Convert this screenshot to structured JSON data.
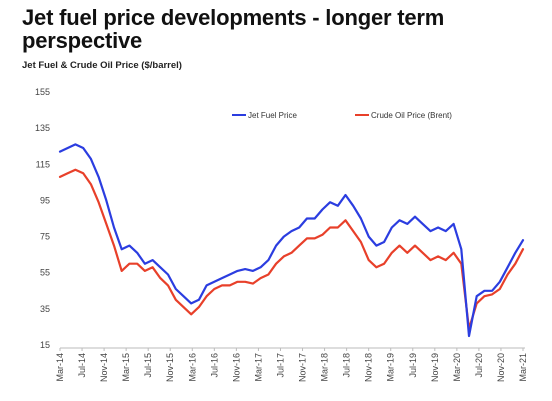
{
  "header": {
    "title": "Jet fuel price developments - longer term perspective",
    "subtitle": "Jet Fuel & Crude Oil Price ($/barrel)"
  },
  "chart_data": {
    "type": "line",
    "title": "Jet Fuel & Crude Oil Price ($/barrel)",
    "xlabel": "",
    "ylabel": "",
    "ylim": [
      15,
      155
    ],
    "yticks": [
      15,
      35,
      55,
      75,
      95,
      115,
      135,
      155
    ],
    "xtick_labels": [
      "Mar-14",
      "Jul-14",
      "Nov-14",
      "Mar-15",
      "Jul-15",
      "Nov-15",
      "Mar-16",
      "Jul-16",
      "Nov-16",
      "Mar-17",
      "Jul-17",
      "Nov-17",
      "Mar-18",
      "Jul-18",
      "Nov-18",
      "Mar-19",
      "Jul-19",
      "Nov-19",
      "Mar-20",
      "Jul-20",
      "Nov-20",
      "Mar-21"
    ],
    "legend_position": "top",
    "grid": false,
    "series": [
      {
        "name": "Jet Fuel Price",
        "color": "#2b3de0",
        "values": [
          122,
          124,
          126,
          124,
          118,
          108,
          95,
          80,
          68,
          70,
          66,
          60,
          62,
          58,
          54,
          46,
          42,
          38,
          40,
          48,
          50,
          52,
          54,
          56,
          57,
          56,
          58,
          62,
          70,
          75,
          78,
          80,
          85,
          85,
          90,
          94,
          92,
          98,
          92,
          85,
          75,
          70,
          72,
          80,
          84,
          82,
          86,
          82,
          78,
          80,
          78,
          82,
          68,
          20,
          42,
          45,
          45,
          50,
          58,
          66,
          73
        ]
      },
      {
        "name": "Crude Oil Price (Brent)",
        "color": "#e8402a",
        "values": [
          108,
          110,
          112,
          110,
          104,
          94,
          82,
          70,
          56,
          60,
          60,
          56,
          58,
          52,
          48,
          40,
          36,
          32,
          36,
          42,
          46,
          48,
          48,
          50,
          50,
          49,
          52,
          54,
          60,
          64,
          66,
          70,
          74,
          74,
          76,
          80,
          80,
          84,
          78,
          72,
          62,
          58,
          60,
          66,
          70,
          66,
          70,
          66,
          62,
          64,
          62,
          66,
          60,
          24,
          38,
          42,
          43,
          46,
          54,
          60,
          68
        ]
      }
    ]
  }
}
